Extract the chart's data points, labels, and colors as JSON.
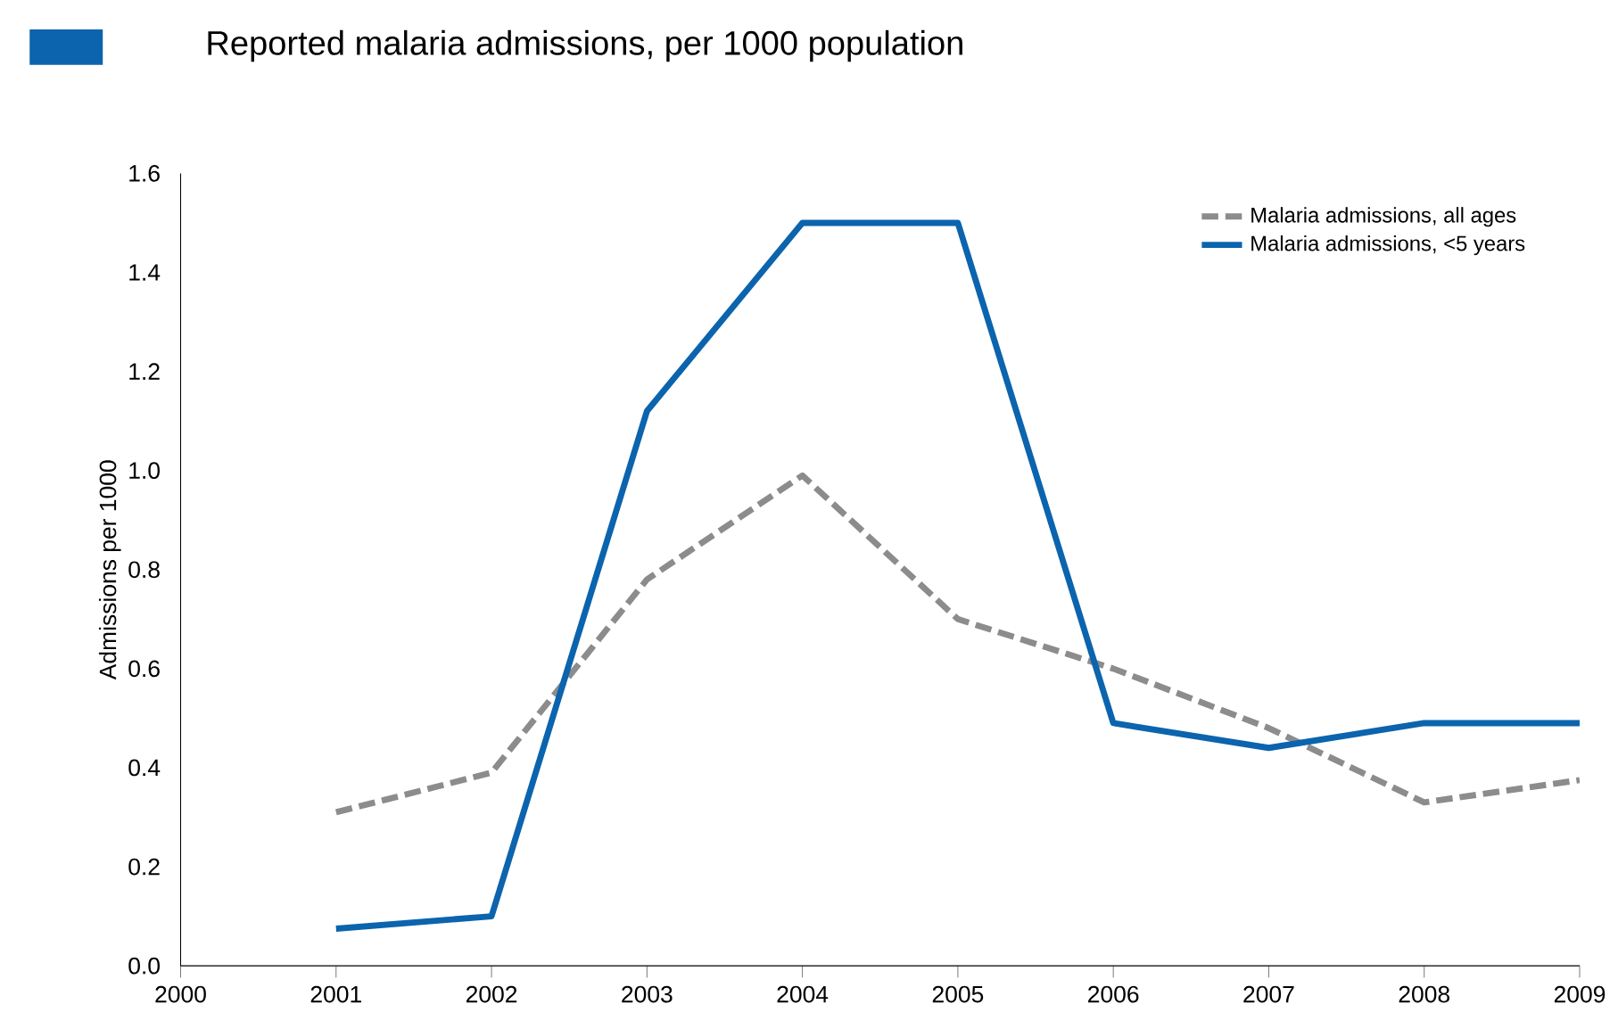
{
  "chart_data": {
    "type": "line",
    "title": "Reported malaria admissions, per 1000 population",
    "ylabel": "Admissions per 1000",
    "x": [
      2001,
      2002,
      2003,
      2004,
      2005,
      2006,
      2007,
      2008,
      2009
    ],
    "series": [
      {
        "name": "Malaria admissions, all ages",
        "color": "#8c8c8c",
        "line_style": "dashed",
        "values": [
          0.31,
          0.39,
          0.78,
          0.99,
          0.7,
          0.6,
          0.48,
          0.33,
          0.375
        ]
      },
      {
        "name": "Malaria admissions, <5 years",
        "color": "#0b64ad",
        "line_style": "solid",
        "values": [
          0.075,
          0.1,
          1.12,
          1.5,
          1.5,
          0.49,
          0.44,
          0.49,
          0.49
        ]
      }
    ],
    "xlim": [
      2000,
      2009
    ],
    "xticks": [
      2000,
      2001,
      2002,
      2003,
      2004,
      2005,
      2006,
      2007,
      2008,
      2009
    ],
    "ylim": [
      0,
      1.6
    ],
    "yticks": [
      {
        "value": 0,
        "label": "0.0"
      },
      {
        "value": 0.2,
        "label": "0.2"
      },
      {
        "value": 0.4,
        "label": "0.4"
      },
      {
        "value": 0.6,
        "label": "0.6"
      },
      {
        "value": 0.8,
        "label": "0.8"
      },
      {
        "value": 1.0,
        "label": "1.0"
      },
      {
        "value": 1.2,
        "label": "1.2"
      },
      {
        "value": 1.4,
        "label": "1.4"
      },
      {
        "value": 1.6,
        "label": "1.6"
      }
    ],
    "grid": false,
    "legend": "top right",
    "marker": "none"
  }
}
